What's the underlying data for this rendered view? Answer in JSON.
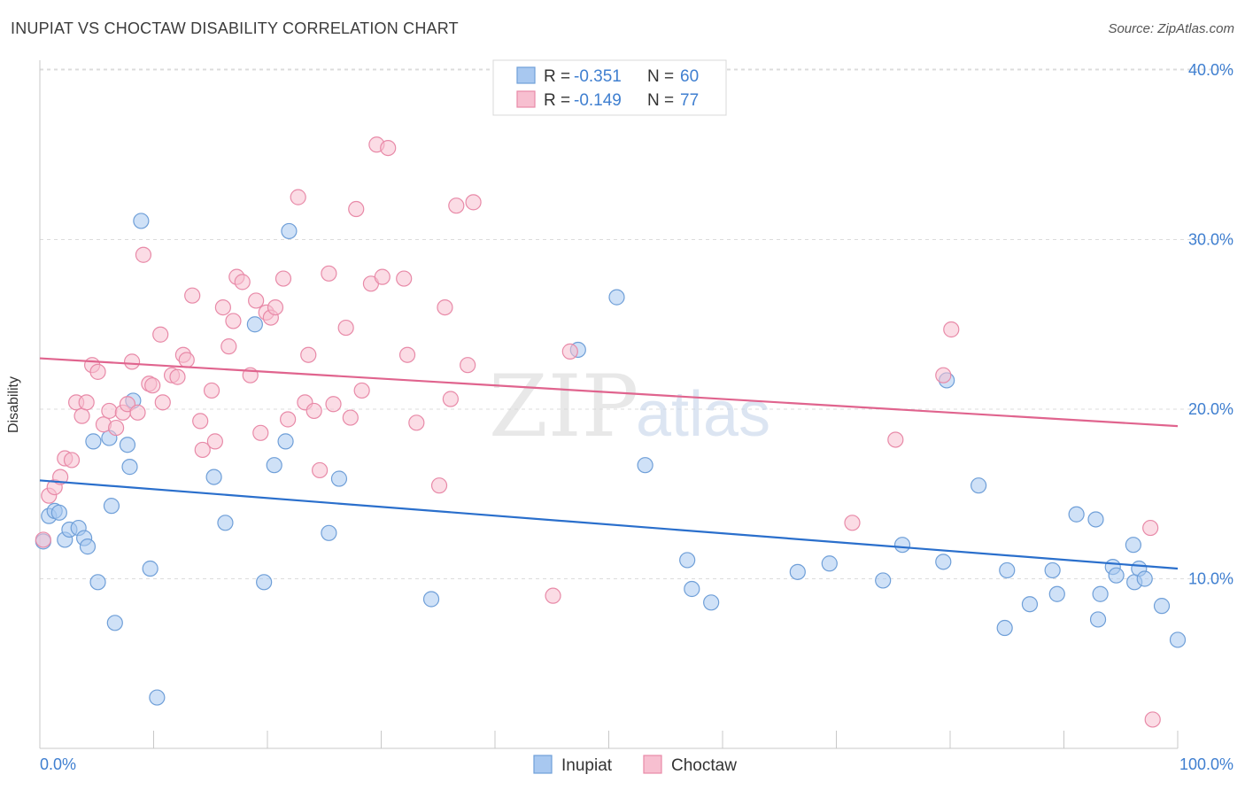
{
  "header": {
    "title": "INUPIAT VS CHOCTAW DISABILITY CORRELATION CHART",
    "source": "Source: ZipAtlas.com"
  },
  "watermark": {
    "zip": "ZIP",
    "atlas": "atlas"
  },
  "legend": {
    "series": [
      {
        "name": "Inupiat",
        "r_label": "R = ",
        "r_value": "-0.351",
        "n_label": "N = ",
        "n_value": "60"
      },
      {
        "name": "Choctaw",
        "r_label": "R = ",
        "r_value": "-0.149",
        "n_label": "N = ",
        "n_value": "77"
      }
    ]
  },
  "chart_data": {
    "type": "scatter",
    "title": "INUPIAT VS CHOCTAW DISABILITY CORRELATION CHART",
    "xlabel": "",
    "ylabel": "Disability",
    "xlim": [
      0,
      100
    ],
    "ylim": [
      0,
      42
    ],
    "x_tick_labels": [
      "0.0%",
      "100.0%"
    ],
    "y_ticks": [
      10,
      20,
      30,
      40
    ],
    "y_tick_labels": [
      "10.0%",
      "20.0%",
      "30.0%",
      "40.0%"
    ],
    "grid": true,
    "legend_position": "top-center",
    "colors": {
      "Inupiat": {
        "fill": "#a8c8f0",
        "stroke": "#6f9fd8",
        "line": "#2a6fcc"
      },
      "Choctaw": {
        "fill": "#f7bfd0",
        "stroke": "#e88aa8",
        "line": "#e0648e"
      },
      "axis_text": "#3f7fd0"
    },
    "series": [
      {
        "name": "Inupiat",
        "trend": [
          [
            0,
            15.8
          ],
          [
            100,
            10.6
          ]
        ],
        "points": [
          [
            0.3,
            12.2
          ],
          [
            0.8,
            13.7
          ],
          [
            1.3,
            14.0
          ],
          [
            1.7,
            13.9
          ],
          [
            2.2,
            12.3
          ],
          [
            2.6,
            12.9
          ],
          [
            3.4,
            13.0
          ],
          [
            3.9,
            12.4
          ],
          [
            4.2,
            11.9
          ],
          [
            4.7,
            18.1
          ],
          [
            5.1,
            9.8
          ],
          [
            6.1,
            18.3
          ],
          [
            6.3,
            14.3
          ],
          [
            6.6,
            7.4
          ],
          [
            7.7,
            17.9
          ],
          [
            7.9,
            16.6
          ],
          [
            8.2,
            20.5
          ],
          [
            8.9,
            31.1
          ],
          [
            9.7,
            10.6
          ],
          [
            10.3,
            3.0
          ],
          [
            15.3,
            16.0
          ],
          [
            16.3,
            13.3
          ],
          [
            18.9,
            25.0
          ],
          [
            19.7,
            9.8
          ],
          [
            20.6,
            16.7
          ],
          [
            21.6,
            18.1
          ],
          [
            21.9,
            30.5
          ],
          [
            25.4,
            12.7
          ],
          [
            26.3,
            15.9
          ],
          [
            34.4,
            8.8
          ],
          [
            47.3,
            23.5
          ],
          [
            50.7,
            26.6
          ],
          [
            53.2,
            16.7
          ],
          [
            56.9,
            11.1
          ],
          [
            57.3,
            9.4
          ],
          [
            59.0,
            8.6
          ],
          [
            66.6,
            10.4
          ],
          [
            69.4,
            10.9
          ],
          [
            74.1,
            9.9
          ],
          [
            75.8,
            12.0
          ],
          [
            79.4,
            11.0
          ],
          [
            79.7,
            21.7
          ],
          [
            82.5,
            15.5
          ],
          [
            84.8,
            7.1
          ],
          [
            85.0,
            10.5
          ],
          [
            87.0,
            8.5
          ],
          [
            89.0,
            10.5
          ],
          [
            89.4,
            9.1
          ],
          [
            91.1,
            13.8
          ],
          [
            92.8,
            13.5
          ],
          [
            93.0,
            7.6
          ],
          [
            93.2,
            9.1
          ],
          [
            94.3,
            10.7
          ],
          [
            94.6,
            10.2
          ],
          [
            96.1,
            12.0
          ],
          [
            96.2,
            9.8
          ],
          [
            96.6,
            10.6
          ],
          [
            97.1,
            10.0
          ],
          [
            98.6,
            8.4
          ],
          [
            100.0,
            6.4
          ]
        ]
      },
      {
        "name": "Choctaw",
        "trend": [
          [
            0,
            23.0
          ],
          [
            100,
            19.0
          ]
        ],
        "points": [
          [
            0.3,
            12.3
          ],
          [
            0.8,
            14.9
          ],
          [
            1.3,
            15.4
          ],
          [
            1.8,
            16.0
          ],
          [
            2.2,
            17.1
          ],
          [
            2.8,
            17.0
          ],
          [
            3.2,
            20.4
          ],
          [
            3.7,
            19.6
          ],
          [
            4.1,
            20.4
          ],
          [
            4.6,
            22.6
          ],
          [
            5.1,
            22.2
          ],
          [
            5.6,
            19.1
          ],
          [
            6.1,
            19.9
          ],
          [
            6.7,
            18.9
          ],
          [
            7.3,
            19.8
          ],
          [
            7.7,
            20.3
          ],
          [
            8.1,
            22.8
          ],
          [
            8.6,
            19.8
          ],
          [
            9.1,
            29.1
          ],
          [
            9.6,
            21.5
          ],
          [
            9.9,
            21.4
          ],
          [
            10.6,
            24.4
          ],
          [
            10.8,
            20.4
          ],
          [
            11.6,
            22.0
          ],
          [
            12.1,
            21.9
          ],
          [
            12.6,
            23.2
          ],
          [
            12.9,
            22.9
          ],
          [
            13.4,
            26.7
          ],
          [
            14.1,
            19.3
          ],
          [
            14.3,
            17.6
          ],
          [
            15.1,
            21.1
          ],
          [
            15.4,
            18.1
          ],
          [
            16.1,
            26.0
          ],
          [
            16.6,
            23.7
          ],
          [
            17.0,
            25.2
          ],
          [
            17.3,
            27.8
          ],
          [
            17.8,
            27.5
          ],
          [
            18.5,
            22.0
          ],
          [
            19.0,
            26.4
          ],
          [
            19.4,
            18.6
          ],
          [
            19.9,
            25.7
          ],
          [
            20.3,
            25.4
          ],
          [
            20.7,
            26.0
          ],
          [
            21.4,
            27.7
          ],
          [
            21.8,
            19.4
          ],
          [
            22.7,
            32.5
          ],
          [
            23.3,
            20.4
          ],
          [
            23.6,
            23.2
          ],
          [
            24.1,
            19.9
          ],
          [
            24.6,
            16.4
          ],
          [
            25.4,
            28.0
          ],
          [
            25.8,
            20.3
          ],
          [
            26.9,
            24.8
          ],
          [
            27.3,
            19.5
          ],
          [
            27.8,
            31.8
          ],
          [
            28.3,
            21.1
          ],
          [
            29.1,
            27.4
          ],
          [
            29.6,
            35.6
          ],
          [
            30.1,
            27.8
          ],
          [
            30.6,
            35.4
          ],
          [
            32.0,
            27.7
          ],
          [
            32.3,
            23.2
          ],
          [
            33.1,
            19.2
          ],
          [
            35.1,
            15.5
          ],
          [
            35.6,
            26.0
          ],
          [
            36.1,
            20.6
          ],
          [
            36.6,
            32.0
          ],
          [
            37.6,
            22.6
          ],
          [
            38.1,
            32.2
          ],
          [
            45.1,
            9.0
          ],
          [
            46.6,
            23.4
          ],
          [
            71.4,
            13.3
          ],
          [
            75.2,
            18.2
          ],
          [
            79.4,
            22.0
          ],
          [
            80.1,
            24.7
          ],
          [
            97.6,
            13.0
          ],
          [
            97.8,
            1.7
          ]
        ]
      }
    ]
  }
}
